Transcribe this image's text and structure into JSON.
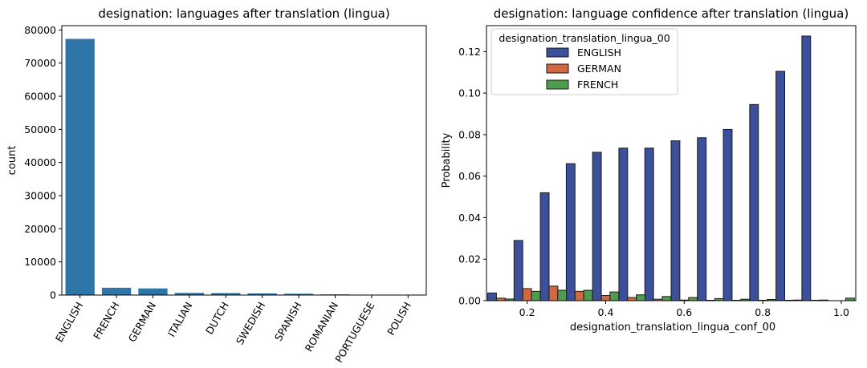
{
  "chart_data": [
    {
      "type": "bar",
      "title": "designation: languages after translation (lingua)",
      "xlabel": "",
      "ylabel": "count",
      "categories": [
        "ENGLISH",
        "FRENCH",
        "GERMAN",
        "ITALIAN",
        "DUTCH",
        "SWEDISH",
        "SPANISH",
        "ROMANIAN",
        "PORTUGUESE",
        "POLISH"
      ],
      "values": [
        77300,
        2200,
        2000,
        650,
        600,
        500,
        400,
        200,
        100,
        80
      ],
      "ylim": [
        0,
        81300
      ],
      "yticks": [
        0,
        10000,
        20000,
        30000,
        40000,
        50000,
        60000,
        70000,
        80000
      ],
      "ytick_labels": [
        "0",
        "10000",
        "20000",
        "30000",
        "40000",
        "50000",
        "60000",
        "70000",
        "80000"
      ],
      "color": "#2e75a8",
      "grid": false
    },
    {
      "type": "bar",
      "title": "designation: language confidence after translation (lingua)",
      "xlabel": "designation_translation_lingua_conf_00",
      "ylabel": "Probability",
      "x": [
        0.133,
        0.2,
        0.267,
        0.333,
        0.4,
        0.467,
        0.533,
        0.6,
        0.667,
        0.733,
        0.8,
        0.867,
        0.933,
        1.0
      ],
      "bin_width": 0.0667,
      "xlim": [
        0.0965,
        1.0368
      ],
      "ylim": [
        0,
        0.1325
      ],
      "xticks": [
        0.2,
        0.4,
        0.6,
        0.8,
        1.0
      ],
      "xtick_labels": [
        "0.2",
        "0.4",
        "0.6",
        "0.8",
        "1.0"
      ],
      "yticks": [
        0,
        0.02,
        0.04,
        0.06,
        0.08,
        0.1,
        0.12
      ],
      "ytick_labels": [
        "0.00",
        "0.02",
        "0.04",
        "0.06",
        "0.08",
        "0.10",
        "0.12"
      ],
      "legend_title": "designation_translation_lingua_00",
      "legend_position": "top-left",
      "series": [
        {
          "name": "ENGLISH",
          "color": "#3b4f9a",
          "values": [
            0.0037,
            0.029,
            0.052,
            0.066,
            0.0715,
            0.0735,
            0.0735,
            0.077,
            0.0785,
            0.0825,
            0.0945,
            0.1105,
            0.1275,
            0
          ]
        },
        {
          "name": "GERMAN",
          "color": "#d1683f",
          "values": [
            0.0012,
            0.0058,
            0.007,
            0.0045,
            0.0025,
            0.0015,
            0.0007,
            0.0003,
            0.0002,
            0.0002,
            0.0002,
            0.0002,
            0.0002,
            0
          ]
        },
        {
          "name": "FRENCH",
          "color": "#4e9c4e",
          "values": [
            0.0008,
            0.0045,
            0.005,
            0.005,
            0.0042,
            0.0028,
            0.002,
            0.0015,
            0.001,
            0.0007,
            0.0006,
            0.0003,
            0.0003,
            0.0012
          ]
        }
      ],
      "grid": false
    }
  ]
}
